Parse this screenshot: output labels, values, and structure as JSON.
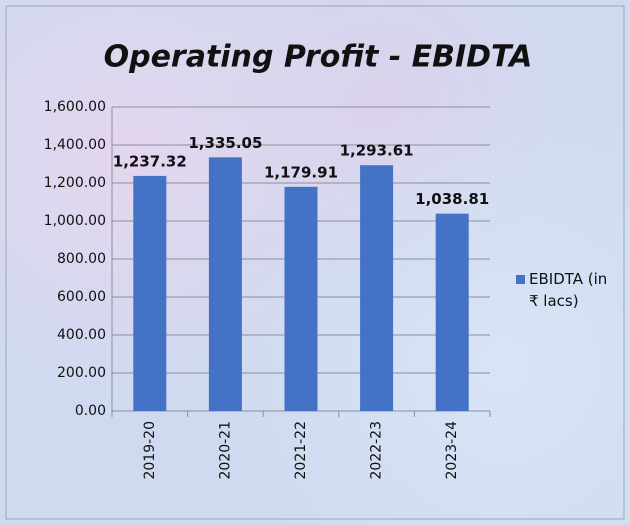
{
  "chart_data": {
    "type": "bar",
    "title": "Operating Profit - EBIDTA",
    "categories": [
      "2019-20",
      "2020-21",
      "2021-22",
      "2022-23",
      "2023-24"
    ],
    "series": [
      {
        "name": "EBIDTA (in ₹ lacs)",
        "color": "#4472c4",
        "values": [
          1237.32,
          1335.05,
          1179.91,
          1293.61,
          1038.81
        ],
        "value_labels": [
          "1,237.32",
          "1,335.05",
          "1,179.91",
          "1,293.61",
          "1,038.81"
        ]
      }
    ],
    "ylim": [
      0,
      1600
    ],
    "yticks": [
      {
        "value": 0,
        "label": "0.00"
      },
      {
        "value": 200,
        "label": "200.00"
      },
      {
        "value": 400,
        "label": "400.00"
      },
      {
        "value": 600,
        "label": "600.00"
      },
      {
        "value": 800,
        "label": "800.00"
      },
      {
        "value": 1000,
        "label": "1,000.00"
      },
      {
        "value": 1200,
        "label": "1,200.00"
      },
      {
        "value": 1400,
        "label": "1,400.00"
      },
      {
        "value": 1600,
        "label": "1,600.00"
      }
    ],
    "grid": true,
    "legend": "right"
  }
}
